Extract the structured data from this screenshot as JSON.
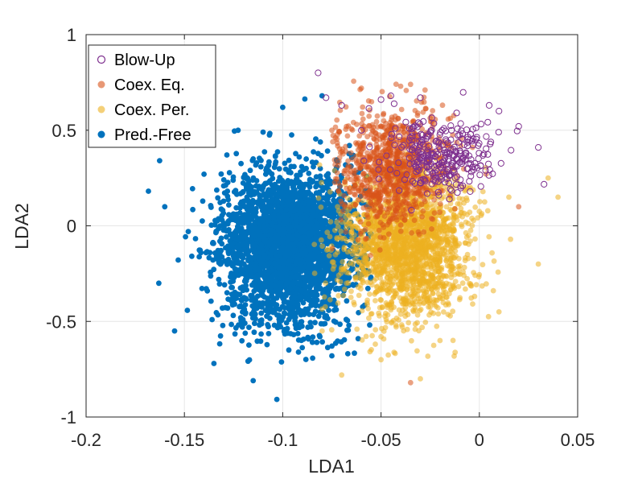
{
  "chart_data": {
    "type": "scatter",
    "title": "",
    "xlabel": "LDA1",
    "ylabel": "LDA2",
    "xlim": [
      -0.2,
      0.05
    ],
    "ylim": [
      -1,
      1
    ],
    "xticks": [
      -0.2,
      -0.15,
      -0.1,
      -0.05,
      0,
      0.05
    ],
    "xtick_labels": [
      "-0.2",
      "-0.15",
      "-0.1",
      "-0.05",
      "0",
      "0.05"
    ],
    "yticks": [
      -1,
      -0.5,
      0,
      0.5,
      1
    ],
    "ytick_labels": [
      "-1",
      "-0.5",
      "0",
      "0.5",
      "1"
    ],
    "grid": true,
    "legend_position": "top-left",
    "series": [
      {
        "name": "Pred.-Free",
        "color": "#0072BD",
        "marker": "filled",
        "count": 3000,
        "center": [
          -0.097,
          -0.1
        ],
        "spread": [
          0.017,
          0.2
        ],
        "points": [
          [
            -0.163,
            -0.3
          ],
          [
            -0.16,
            0.1
          ],
          [
            -0.155,
            -0.55
          ],
          [
            -0.14,
            0.27
          ],
          [
            -0.135,
            -0.72
          ],
          [
            -0.115,
            -0.81
          ],
          [
            -0.11,
            0.49
          ],
          [
            -0.1,
            0.62
          ],
          [
            -0.09,
            -0.45
          ],
          [
            -0.08,
            0.68
          ],
          [
            -0.075,
            -0.68
          ],
          [
            -0.07,
            0.25
          ]
        ]
      },
      {
        "name": "Coex. Per.",
        "color": "#EDB120",
        "marker": "filled",
        "count": 2000,
        "center": [
          -0.037,
          -0.1
        ],
        "spread": [
          0.016,
          0.18
        ],
        "points": [
          [
            -0.08,
            -0.55
          ],
          [
            -0.07,
            -0.78
          ],
          [
            -0.05,
            -0.7
          ],
          [
            -0.03,
            -0.8
          ],
          [
            -0.02,
            -0.6
          ],
          [
            0.01,
            -0.45
          ],
          [
            0.03,
            -0.2
          ],
          [
            0.04,
            0.15
          ],
          [
            0.035,
            0.25
          ],
          [
            0.015,
            0.15
          ]
        ]
      },
      {
        "name": "Coex. Eq.",
        "color": "#D95319",
        "marker": "filled",
        "count": 900,
        "center": [
          -0.045,
          0.3
        ],
        "spread": [
          0.014,
          0.15
        ],
        "points": [
          [
            -0.06,
            0.72
          ],
          [
            -0.04,
            0.73
          ],
          [
            -0.035,
            0.74
          ],
          [
            -0.075,
            0.5
          ],
          [
            -0.05,
            0.1
          ],
          [
            -0.035,
            -0.82
          ],
          [
            0.02,
            0.1
          ]
        ]
      },
      {
        "name": "Blow-Up",
        "color": "#7E2F8E",
        "marker": "open-circle",
        "count": 300,
        "center": [
          -0.02,
          0.38
        ],
        "spread": [
          0.014,
          0.1
        ],
        "points": [
          [
            -0.082,
            0.8
          ],
          [
            -0.078,
            0.67
          ],
          [
            -0.07,
            0.63
          ],
          [
            -0.05,
            0.66
          ],
          [
            -0.045,
            0.68
          ],
          [
            -0.03,
            0.67
          ],
          [
            0.005,
            0.63
          ],
          [
            0.01,
            0.6
          ],
          [
            0.02,
            0.52
          ],
          [
            0.03,
            0.41
          ],
          [
            -0.06,
            0.5
          ]
        ]
      }
    ],
    "legend": [
      "Blow-Up",
      "Coex. Eq.",
      "Coex. Per.",
      "Pred.-Free"
    ]
  }
}
